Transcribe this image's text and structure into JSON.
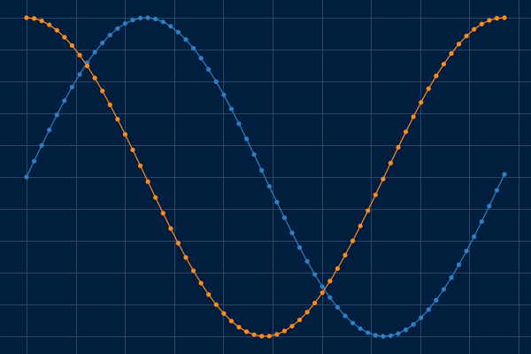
{
  "colors": {
    "background": "#021e3f",
    "grid": "#2a4468",
    "sine": "#2f7fc4",
    "cosine": "#ff8a1e"
  },
  "chart_data": {
    "type": "line",
    "grid": true,
    "legend": "none",
    "xlim": [
      0,
      6.4
    ],
    "ylim": [
      -1.05,
      1.05
    ],
    "x": [
      0,
      0.1,
      0.2,
      0.3,
      0.4,
      0.5,
      0.6,
      0.7,
      0.8,
      0.9,
      1.0,
      1.1,
      1.2,
      1.3,
      1.4,
      1.5,
      1.6,
      1.7,
      1.8,
      1.9,
      2.0,
      2.1,
      2.2,
      2.3,
      2.4,
      2.5,
      2.6,
      2.7,
      2.8,
      2.9,
      3.0,
      3.1,
      3.2,
      3.3,
      3.4,
      3.5,
      3.6,
      3.7,
      3.8,
      3.9,
      4.0,
      4.1,
      4.2,
      4.3,
      4.4,
      4.5,
      4.6,
      4.7,
      4.8,
      4.9,
      5.0,
      5.1,
      5.2,
      5.3,
      5.4,
      5.5,
      5.6,
      5.7,
      5.8,
      5.9,
      6.0,
      6.1,
      6.2,
      6.3
    ],
    "series": [
      {
        "color": "#2f7fc4",
        "values": [
          0.0,
          0.0998,
          0.1987,
          0.2955,
          0.3894,
          0.4794,
          0.5646,
          0.6442,
          0.7174,
          0.7833,
          0.8415,
          0.8912,
          0.932,
          0.9636,
          0.9854,
          0.9975,
          0.9996,
          0.9917,
          0.9738,
          0.9463,
          0.9093,
          0.8632,
          0.8085,
          0.7457,
          0.6755,
          0.5985,
          0.5155,
          0.4274,
          0.335,
          0.2392,
          0.1411,
          0.0416,
          -0.0584,
          -0.1577,
          -0.2555,
          -0.3508,
          -0.4425,
          -0.5298,
          -0.6119,
          -0.6878,
          -0.7568,
          -0.8183,
          -0.8716,
          -0.9162,
          -0.9516,
          -0.9775,
          -0.9937,
          -0.9999,
          -0.9962,
          -0.9825,
          -0.9589,
          -0.9258,
          -0.8835,
          -0.8323,
          -0.7728,
          -0.7055,
          -0.6313,
          -0.5507,
          -0.4646,
          -0.3739,
          -0.2794,
          -0.1822,
          -0.0831,
          0.0168
        ]
      },
      {
        "color": "#ff8a1e",
        "values": [
          1.0,
          0.995,
          0.9801,
          0.9553,
          0.9211,
          0.8776,
          0.8253,
          0.7648,
          0.6967,
          0.6216,
          0.5403,
          0.4536,
          0.3624,
          0.2675,
          0.17,
          0.0707,
          -0.0292,
          -0.1288,
          -0.2272,
          -0.3233,
          -0.4161,
          -0.5048,
          -0.5885,
          -0.6663,
          -0.7374,
          -0.8011,
          -0.8569,
          -0.9041,
          -0.9422,
          -0.971,
          -0.99,
          -0.9991,
          -0.9983,
          -0.9875,
          -0.9668,
          -0.9365,
          -0.8968,
          -0.8481,
          -0.791,
          -0.726,
          -0.6536,
          -0.5748,
          -0.4903,
          -0.4008,
          -0.3073,
          -0.2108,
          -0.1122,
          -0.0124,
          0.0875,
          0.1865,
          0.2837,
          0.378,
          0.4685,
          0.5544,
          0.6347,
          0.7087,
          0.7756,
          0.8347,
          0.8855,
          0.9275,
          0.9602,
          0.9833,
          0.9965,
          0.9999
        ]
      }
    ]
  }
}
